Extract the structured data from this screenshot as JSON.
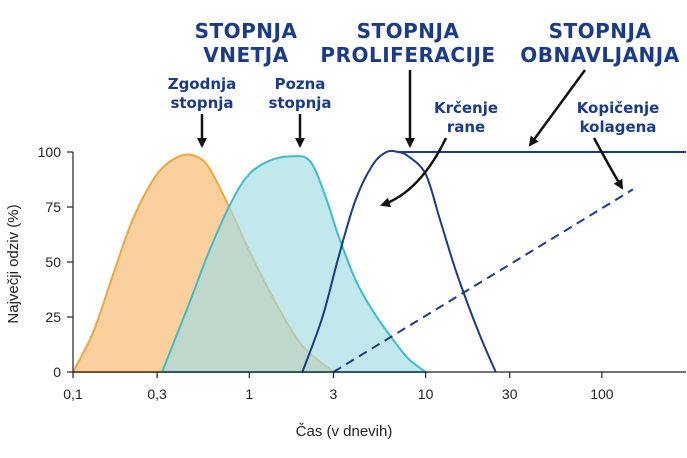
{
  "chart_data": {
    "type": "area",
    "xlabel": "Čas (v dnevih)",
    "ylabel": "Največji odziv (%)",
    "x_scale": "log",
    "xlim": [
      0.1,
      300
    ],
    "ylim": [
      0,
      100
    ],
    "x_ticks": [
      0.1,
      0.3,
      1,
      3,
      10,
      30,
      100
    ],
    "x_tick_labels": [
      "0,1",
      "0,3",
      "1",
      "3",
      "10",
      "30",
      "100"
    ],
    "y_ticks": [
      0,
      25,
      50,
      75,
      100
    ],
    "y_tick_labels": [
      "0",
      "25",
      "50",
      "75",
      "100"
    ],
    "grid": false,
    "colors": {
      "early_fill": "#f9c98d",
      "early_stroke": "#f0a640",
      "late_fill": "#9fdbe3",
      "late_stroke": "#3fbccb",
      "dark_blue": "#1a3a8a"
    },
    "series": [
      {
        "name": "Zgodnja stopnja",
        "style": "filled",
        "x": [
          0.1,
          0.13,
          0.17,
          0.22,
          0.3,
          0.4,
          0.5,
          0.6,
          0.8,
          1.0,
          1.4,
          2.0,
          3.0
        ],
        "y": [
          0,
          18,
          45,
          70,
          90,
          98,
          98,
          92,
          72,
          55,
          32,
          12,
          0
        ]
      },
      {
        "name": "Pozna stopnja",
        "style": "filled",
        "x": [
          0.32,
          0.45,
          0.6,
          0.8,
          1.0,
          1.3,
          1.7,
          2.2,
          2.7,
          3.2,
          4.0,
          5.0,
          6.5,
          8.0,
          10.0
        ],
        "y": [
          0,
          30,
          56,
          78,
          90,
          96,
          98,
          96,
          80,
          62,
          42,
          28,
          15,
          6,
          0
        ]
      },
      {
        "name": "Krčenje rane",
        "style": "line",
        "x": [
          2.0,
          2.6,
          3.2,
          4.0,
          5.0,
          6.0,
          7.0,
          8.0,
          10.0,
          12.0,
          15.0,
          20.0,
          25.0
        ],
        "y": [
          0,
          25,
          52,
          78,
          94,
          100,
          100,
          98,
          90,
          70,
          45,
          18,
          0
        ]
      },
      {
        "name": "Obnavljanje",
        "style": "line",
        "x": [
          7.0,
          300
        ],
        "y": [
          100,
          100
        ]
      },
      {
        "name": "Kopičenje kolagena",
        "style": "dashed",
        "x": [
          3.0,
          150
        ],
        "y": [
          0,
          83
        ]
      }
    ],
    "annotations": {
      "inflammation_phase": [
        "STOPNJA",
        "VNETJA"
      ],
      "proliferation_phase": [
        "STOPNJA",
        "PROLIFERACIJE"
      ],
      "remodeling_phase": [
        "STOPNJA",
        "OBNAVLJANJA"
      ],
      "early_phase": [
        "Zgodnja",
        "stopnja"
      ],
      "late_phase": [
        "Pozna",
        "stopnja"
      ],
      "wound_contraction": [
        "Krčenje",
        "rane"
      ],
      "collagen_accumulation": [
        "Kopičenje",
        "kolagena"
      ]
    }
  }
}
